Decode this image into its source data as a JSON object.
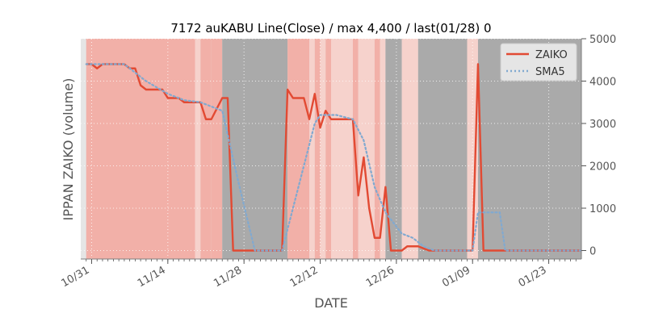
{
  "chart_data": {
    "type": "line",
    "title": "7172 auKABU Line(Close) / max 4,400 / last(01/28) 0",
    "xlabel": "DATE",
    "ylabel": "IPPAN ZAIKO (volume)",
    "ylim": [
      -200,
      5000
    ],
    "yticks": [
      0,
      1000,
      2000,
      3000,
      4000,
      5000
    ],
    "ytick_labels": [
      "0",
      "1000",
      "2000",
      "3000",
      "4000",
      "5000"
    ],
    "y_axis_side": "right",
    "xlim": [
      "2023-10-29",
      "2024-01-29"
    ],
    "xticks": [
      {
        "date": "2023-10-31",
        "label": "10/31"
      },
      {
        "date": "2023-11-14",
        "label": "11/14"
      },
      {
        "date": "2023-11-28",
        "label": "11/28"
      },
      {
        "date": "2023-12-12",
        "label": "12/12"
      },
      {
        "date": "2023-12-26",
        "label": "12/26"
      },
      {
        "date": "2024-01-09",
        "label": "01/09"
      },
      {
        "date": "2024-01-23",
        "label": "01/23"
      }
    ],
    "grid": true,
    "legend_position": "top-right",
    "colors": {
      "zaiko": "#e24a33",
      "sma5": "#81a9d0",
      "plot_bg": "#e5e5e5",
      "band_strong": "#f2b0a8",
      "band_light": "#f6d2cc",
      "band_gray": "#aaaaaa",
      "frame": "#7f7f7f"
    },
    "series": [
      {
        "name": "ZAIKO",
        "style": "solid",
        "points": [
          [
            "2023-10-30",
            4400
          ],
          [
            "2023-10-31",
            4400
          ],
          [
            "2023-11-01",
            4300
          ],
          [
            "2023-11-02",
            4400
          ],
          [
            "2023-11-06",
            4400
          ],
          [
            "2023-11-07",
            4300
          ],
          [
            "2023-11-08",
            4300
          ],
          [
            "2023-11-09",
            3900
          ],
          [
            "2023-11-10",
            3800
          ],
          [
            "2023-11-13",
            3800
          ],
          [
            "2023-11-14",
            3600
          ],
          [
            "2023-11-15",
            3600
          ],
          [
            "2023-11-16",
            3600
          ],
          [
            "2023-11-17",
            3500
          ],
          [
            "2023-11-20",
            3500
          ],
          [
            "2023-11-21",
            3100
          ],
          [
            "2023-11-22",
            3100
          ],
          [
            "2023-11-24",
            3600
          ],
          [
            "2023-11-25",
            3600
          ],
          [
            "2023-11-26",
            0
          ],
          [
            "2023-12-05",
            0
          ],
          [
            "2023-12-06",
            3800
          ],
          [
            "2023-12-07",
            3600
          ],
          [
            "2023-12-08",
            3600
          ],
          [
            "2023-12-09",
            3600
          ],
          [
            "2023-12-10",
            3100
          ],
          [
            "2023-12-11",
            3700
          ],
          [
            "2023-12-12",
            2900
          ],
          [
            "2023-12-13",
            3300
          ],
          [
            "2023-12-14",
            3100
          ],
          [
            "2023-12-15",
            3100
          ],
          [
            "2023-12-18",
            3100
          ],
          [
            "2023-12-19",
            1300
          ],
          [
            "2023-12-20",
            2200
          ],
          [
            "2023-12-21",
            1000
          ],
          [
            "2023-12-22",
            300
          ],
          [
            "2023-12-23",
            300
          ],
          [
            "2023-12-24",
            1500
          ],
          [
            "2023-12-25",
            0
          ],
          [
            "2023-12-27",
            0
          ],
          [
            "2023-12-28",
            100
          ],
          [
            "2023-12-30",
            100
          ],
          [
            "2024-01-01",
            0
          ],
          [
            "2024-01-09",
            0
          ],
          [
            "2024-01-10",
            4400
          ],
          [
            "2024-01-11",
            0
          ],
          [
            "2024-01-29",
            0
          ]
        ]
      },
      {
        "name": "SMA5",
        "style": "dotted",
        "points": [
          [
            "2023-10-30",
            4400
          ],
          [
            "2023-11-06",
            4400
          ],
          [
            "2023-11-10",
            4000
          ],
          [
            "2023-11-14",
            3700
          ],
          [
            "2023-11-17",
            3550
          ],
          [
            "2023-11-20",
            3500
          ],
          [
            "2023-11-24",
            3300
          ],
          [
            "2023-11-27",
            1600
          ],
          [
            "2023-11-30",
            0
          ],
          [
            "2023-12-05",
            0
          ],
          [
            "2023-12-09",
            2000
          ],
          [
            "2023-12-11",
            3000
          ],
          [
            "2023-12-12",
            3200
          ],
          [
            "2023-12-15",
            3200
          ],
          [
            "2023-12-18",
            3100
          ],
          [
            "2023-12-20",
            2600
          ],
          [
            "2023-12-22",
            1500
          ],
          [
            "2023-12-24",
            900
          ],
          [
            "2023-12-27",
            400
          ],
          [
            "2023-12-29",
            300
          ],
          [
            "2023-12-31",
            100
          ],
          [
            "2024-01-02",
            0
          ],
          [
            "2024-01-09",
            0
          ],
          [
            "2024-01-10",
            900
          ],
          [
            "2024-01-14",
            900
          ],
          [
            "2024-01-15",
            0
          ],
          [
            "2024-01-29",
            0
          ]
        ]
      }
    ],
    "background_bands": [
      {
        "start": "2023-10-30",
        "end": "2023-11-19",
        "tone": "strong"
      },
      {
        "start": "2023-11-19",
        "end": "2023-11-20",
        "tone": "light"
      },
      {
        "start": "2023-11-20",
        "end": "2023-11-22",
        "tone": "strong"
      },
      {
        "start": "2023-11-22",
        "end": "2023-11-24",
        "tone": "strong"
      },
      {
        "start": "2023-11-24",
        "end": "2023-12-06",
        "tone": "gray"
      },
      {
        "start": "2023-12-06",
        "end": "2023-12-10",
        "tone": "strong"
      },
      {
        "start": "2023-12-10",
        "end": "2023-12-11",
        "tone": "light"
      },
      {
        "start": "2023-12-11",
        "end": "2023-12-12",
        "tone": "strong"
      },
      {
        "start": "2023-12-12",
        "end": "2023-12-13",
        "tone": "light"
      },
      {
        "start": "2023-12-13",
        "end": "2023-12-14",
        "tone": "strong"
      },
      {
        "start": "2023-12-14",
        "end": "2023-12-18",
        "tone": "light"
      },
      {
        "start": "2023-12-18",
        "end": "2023-12-19",
        "tone": "strong"
      },
      {
        "start": "2023-12-19",
        "end": "2023-12-22",
        "tone": "light"
      },
      {
        "start": "2023-12-22",
        "end": "2023-12-23",
        "tone": "strong"
      },
      {
        "start": "2023-12-23",
        "end": "2023-12-24",
        "tone": "light"
      },
      {
        "start": "2023-12-24",
        "end": "2023-12-27",
        "tone": "gray"
      },
      {
        "start": "2023-12-27",
        "end": "2023-12-30",
        "tone": "light"
      },
      {
        "start": "2023-12-30",
        "end": "2024-01-08",
        "tone": "gray"
      },
      {
        "start": "2024-01-08",
        "end": "2024-01-10",
        "tone": "light"
      },
      {
        "start": "2024-01-10",
        "end": "2024-01-29",
        "tone": "gray"
      }
    ]
  }
}
